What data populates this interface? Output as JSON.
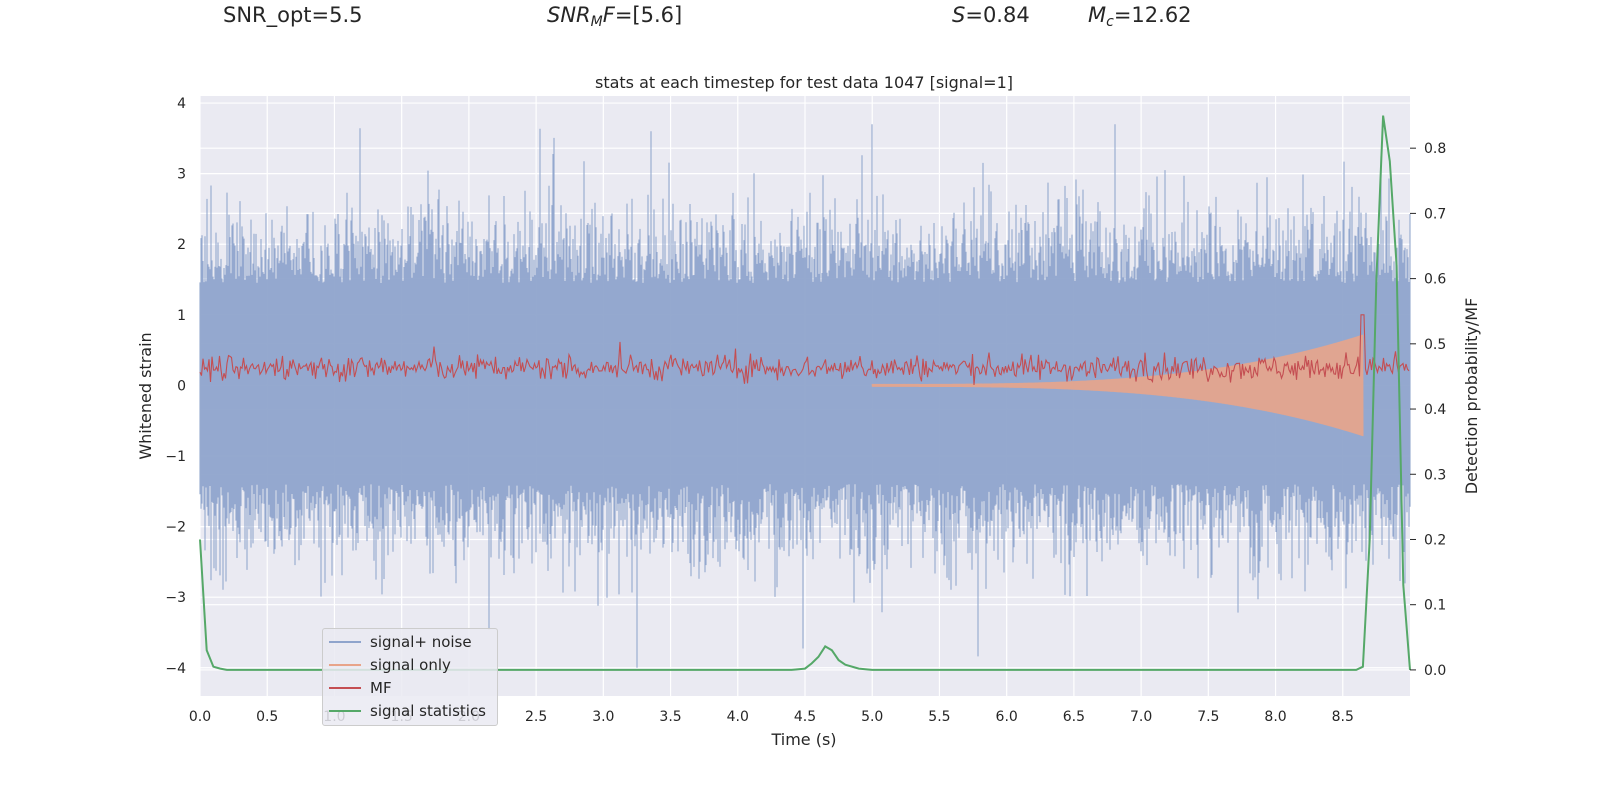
{
  "header": {
    "snr_opt": "SNR_opt=5.5",
    "snr_mf_base": "SNR",
    "snr_mf_sub": "M",
    "snr_mf_rest": "F",
    "snr_mf_value": "=[5.6]",
    "s_symbol": "S",
    "s_value": "=0.84",
    "mc_symbol": "M",
    "mc_sub": "c",
    "mc_value": "=12.62"
  },
  "chart_data": {
    "type": "line",
    "title": "stats at each timestep for test data 1047 [signal=1]",
    "xlabel": "Time (s)",
    "ylabel": "Whitened strain",
    "ylabel_right": "Detection probability/MF",
    "xlim": [
      0,
      9.0
    ],
    "ylim": [
      -4.4,
      4.1
    ],
    "ylim_right": [
      -0.04,
      0.88
    ],
    "xticks": [
      "0.0",
      "0.5",
      "1.0",
      "1.5",
      "2.0",
      "2.5",
      "3.0",
      "3.5",
      "4.0",
      "4.5",
      "5.0",
      "5.5",
      "6.0",
      "6.5",
      "7.0",
      "7.5",
      "8.0",
      "8.5"
    ],
    "yticks_left": [
      "4",
      "3",
      "2",
      "1",
      "0",
      "−1",
      "−2",
      "−3",
      "−4"
    ],
    "yticks_left_values": [
      4,
      3,
      2,
      1,
      0,
      -1,
      -2,
      -3,
      -4
    ],
    "yticks_right": [
      "0.8",
      "0.7",
      "0.6",
      "0.5",
      "0.4",
      "0.3",
      "0.2",
      "0.1",
      "0.0"
    ],
    "yticks_right_values": [
      0.8,
      0.7,
      0.6,
      0.5,
      0.4,
      0.3,
      0.2,
      0.1,
      0.0
    ],
    "series": [
      {
        "name": "signal+ noise",
        "color": "#8fa4cc",
        "description_type": "noise band",
        "typical_range": [
          -2.0,
          2.0
        ],
        "peak_max": 3.7,
        "peak_min": -4.0
      },
      {
        "name": "signal only",
        "color": "#e8a48a",
        "description_type": "chirp",
        "start_t": 5.0,
        "end_t": 8.65,
        "max_amp": 0.7
      },
      {
        "name": "MF",
        "color": "#c44e52",
        "center": 0.25,
        "amp": 0.25
      },
      {
        "name": "signal statistics",
        "color": "#55a868",
        "axis": "right",
        "x": [
          0.0,
          0.05,
          0.1,
          0.15,
          0.2,
          0.3,
          4.4,
          4.5,
          4.55,
          4.6,
          4.65,
          4.7,
          4.75,
          4.8,
          4.9,
          5.0,
          5.1,
          8.5,
          8.6,
          8.65,
          8.7,
          8.75,
          8.8,
          8.85,
          8.9,
          8.95,
          9.0
        ],
        "y": [
          0.2,
          0.03,
          0.005,
          0.002,
          0.0,
          0.0,
          0.0,
          0.002,
          0.01,
          0.02,
          0.036,
          0.03,
          0.015,
          0.008,
          0.002,
          0.0,
          0.0,
          0.0,
          0.0,
          0.005,
          0.2,
          0.6,
          0.85,
          0.78,
          0.62,
          0.13,
          0.0
        ]
      }
    ],
    "legend": {
      "position": "lower-left",
      "entries": [
        "signal+ noise",
        "signal only",
        "MF",
        "signal statistics"
      ]
    }
  }
}
